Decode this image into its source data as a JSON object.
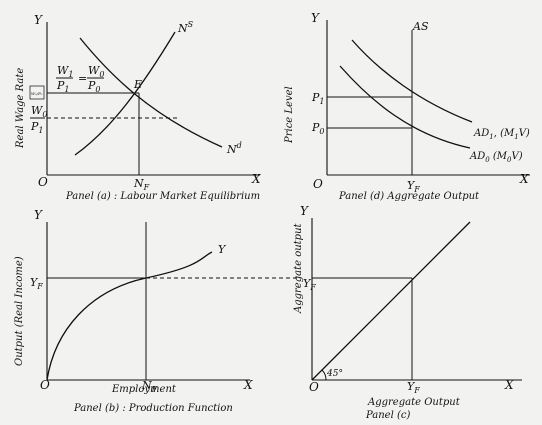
{
  "panel_a": {
    "caption": "Panel (a) : Labour Market Equilibrium",
    "y_axis_letter": "Y",
    "x_axis_letter": "X",
    "origin": "O",
    "y_label": "Real Wage Rate",
    "supply_label": "N",
    "supply_sup": "S",
    "demand_label": "N",
    "demand_sup": "d",
    "eq_point": "E",
    "wage_frac1_num": "W",
    "wage_frac1_num_sub": "1",
    "wage_frac1_den": "P",
    "wage_frac1_den_sub": "1",
    "equals": "=",
    "wage_frac2_num": "W",
    "wage_frac2_num_sub": "0",
    "wage_frac2_den": "P",
    "wage_frac2_den_sub": "0",
    "tick_small_frac": "W₀/P₀",
    "tick_low_num": "W",
    "tick_low_num_sub": "0",
    "tick_low_den": "P",
    "tick_low_den_sub": "1",
    "nf_label": "N",
    "nf_sub": "F"
  },
  "panel_d": {
    "caption": "Panel (d) Aggregate Output",
    "y_axis_letter": "Y",
    "x_axis_letter": "X",
    "origin": "O",
    "y_label": "Price Level",
    "as_label": "AS",
    "p1_label": "P",
    "p1_sub": "1",
    "p0_label": "P",
    "p0_sub": "0",
    "ad1_label": "AD",
    "ad1_sub": "1",
    "ad1_args": ",  (M",
    "ad1_args_sub": "1",
    "ad1_tail": "V)",
    "ad0_label": "AD",
    "ad0_sub": "0",
    "ad0_args": "  (M",
    "ad0_args_sub": "0",
    "ad0_tail": "V)",
    "yf_label": "Y",
    "yf_sub": "F"
  },
  "panel_b": {
    "caption": "Panel (b) : Production Function",
    "y_axis_letter": "Y",
    "x_axis_letter": "X",
    "origin": "O",
    "y_label": "Output (Real Income)",
    "curve_label": "Y",
    "yf_label": "Y",
    "yf_sub": "F",
    "x_label": "Employment",
    "nf_label": "N",
    "nf_sub": "F"
  },
  "panel_c": {
    "caption_line1": "Aggregate Output",
    "caption_line2": "Panel (c)",
    "y_axis_letter": "Y",
    "x_axis_letter": "X",
    "origin": "O",
    "y_label": "Aggregate output",
    "angle_label": "45°",
    "yf_y_label": "Y",
    "yf_y_sub": "F",
    "yf_x_label": "Y",
    "yf_x_sub": "F"
  }
}
